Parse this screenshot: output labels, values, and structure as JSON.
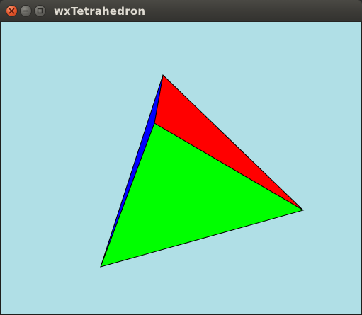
{
  "window": {
    "title": "wxTetrahedron",
    "controls": {
      "close_icon": "close-icon",
      "minimize_icon": "minimize-icon",
      "maximize_icon": "maximize-icon"
    }
  },
  "scene": {
    "background_color": "#b0dfe6",
    "outline_color": "#000000",
    "faces": [
      {
        "name": "red-face",
        "color": "#ff0000"
      },
      {
        "name": "blue-face",
        "color": "#0000ff"
      },
      {
        "name": "green-face",
        "color": "#00ff00"
      }
    ]
  }
}
